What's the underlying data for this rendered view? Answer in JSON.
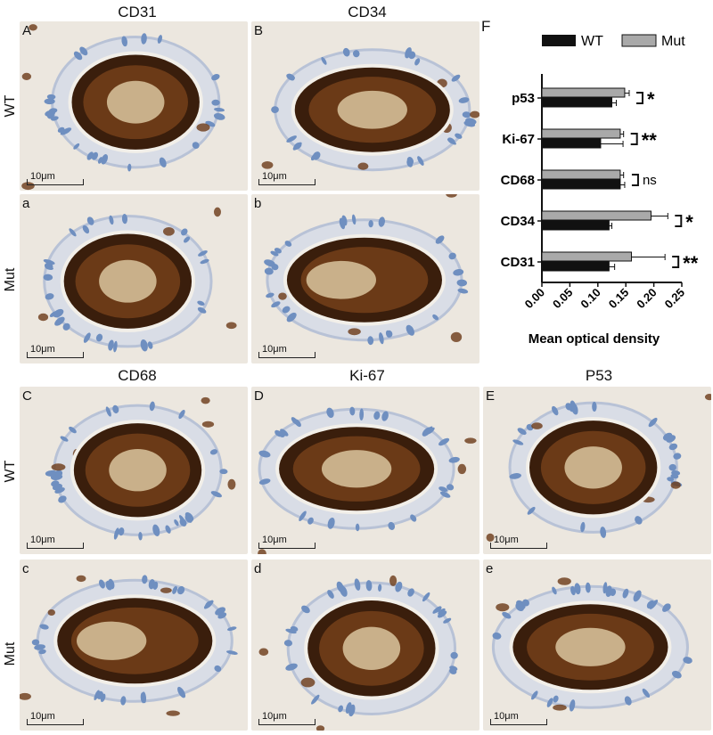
{
  "columns_top": [
    "CD31",
    "CD34"
  ],
  "columns_bottom": [
    "CD68",
    "Ki-67",
    "P53"
  ],
  "rows": {
    "wt": "WT",
    "mut": "Mut"
  },
  "panels": {
    "A": "A",
    "B": "B",
    "a": "a",
    "b": "b",
    "C": "C",
    "D": "D",
    "E": "E",
    "c": "c",
    "d": "d",
    "e": "e"
  },
  "scale_bar": "10μm",
  "chart_panel_label": "F",
  "colors": {
    "wt": "#111111",
    "mut": "#a9a9a9",
    "stain_dark": "#3a1e0c",
    "stain_mid": "#6b3a17",
    "lumen": "#c9b08a",
    "bg": "#ece7df",
    "nuclei": "#6f8fc0"
  },
  "chart_data": {
    "type": "bar",
    "orientation": "horizontal",
    "categories": [
      "p53",
      "Ki-67",
      "CD68",
      "CD34",
      "CD31"
    ],
    "series": [
      {
        "name": "WT",
        "values": [
          0.125,
          0.105,
          0.14,
          0.12,
          0.12
        ],
        "errors": [
          0.008,
          0.04,
          0.008,
          0.005,
          0.01
        ]
      },
      {
        "name": "Mut",
        "values": [
          0.148,
          0.14,
          0.14,
          0.195,
          0.16
        ],
        "errors": [
          0.008,
          0.006,
          0.006,
          0.03,
          0.06
        ]
      }
    ],
    "significance": [
      "*",
      "**",
      "ns",
      "*",
      "**"
    ],
    "xlabel": "Mean optical density",
    "xlim": [
      0,
      0.25
    ],
    "xticks": [
      "0.00",
      "0.05",
      "0.10",
      "0.15",
      "0.20",
      "0.25"
    ],
    "legend_position": "top"
  }
}
